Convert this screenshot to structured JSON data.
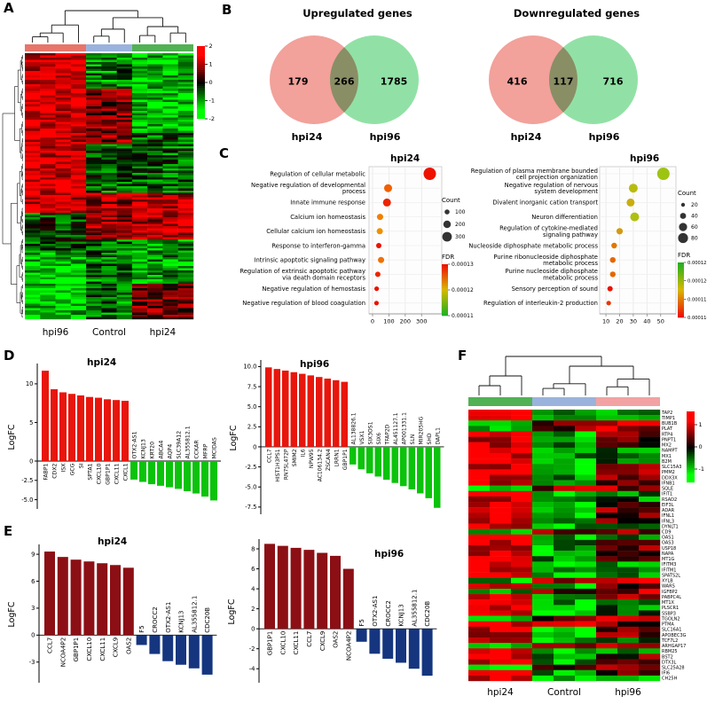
{
  "figure": {
    "panels": {
      "A": "A",
      "B": "B",
      "C": "C",
      "D": "D",
      "E": "E",
      "F": "F"
    }
  },
  "chart_data": [
    {
      "id": "panelA-heatmap",
      "type": "heatmap",
      "panel": "A",
      "description": "Hierarchically clustered heatmap of differentially expressed genes (rows, not legible) across samples (columns); red = up, green = down.",
      "column_groups": [
        {
          "label": "hpi96",
          "color": "#e8756a",
          "columns": 4
        },
        {
          "label": "Control",
          "color": "#9ab3dd",
          "columns": 3
        },
        {
          "label": "hpi24",
          "color": "#51b154",
          "columns": 4
        }
      ],
      "x_labels": [
        "hpi96",
        "Control",
        "hpi24"
      ],
      "color_scale": {
        "high": "#ff0000",
        "mid": "#000000",
        "low": "#00ff00",
        "ticks": [
          "2",
          "1",
          "0",
          "-1",
          "-2"
        ]
      },
      "rows": 120,
      "seed": 7
    },
    {
      "id": "venn-upregulated",
      "type": "venn",
      "panel": "B",
      "title": "Upregulated genes",
      "sets": [
        {
          "label": "hpi24",
          "color": "#f0908a"
        },
        {
          "label": "hpi96",
          "color": "#7edc96"
        }
      ],
      "values": {
        "left_only": "179",
        "overlap": "266",
        "right_only": "1785"
      }
    },
    {
      "id": "venn-downregulated",
      "type": "venn",
      "panel": "B",
      "title": "Downregulated genes",
      "sets": [
        {
          "label": "hpi24",
          "color": "#f0908a"
        },
        {
          "label": "hpi96",
          "color": "#7edc96"
        }
      ],
      "values": {
        "left_only": "416",
        "overlap": "117",
        "right_only": "716"
      }
    },
    {
      "id": "go-hpi24",
      "type": "scatter",
      "panel": "C",
      "title": "hpi24",
      "xlim": [
        0,
        380
      ],
      "x_ticks": [
        "0",
        "100",
        "200",
        "300"
      ],
      "points": [
        {
          "term": [
            "Regulation of cellular metabolic"
          ],
          "count": 350,
          "r": 7,
          "color": "#ee1100"
        },
        {
          "term": [
            "Negative regulation of developmental",
            "process"
          ],
          "count": 95,
          "r": 4.5,
          "color": "#f06000"
        },
        {
          "term": [
            "Innate immune response"
          ],
          "count": 88,
          "r": 4.5,
          "color": "#ee2200"
        },
        {
          "term": [
            "Calcium ion homeostasis"
          ],
          "count": 46,
          "r": 3.5,
          "color": "#f08000"
        },
        {
          "term": [
            "Cellular calcium ion homeostasis"
          ],
          "count": 44,
          "r": 3.5,
          "color": "#f09000"
        },
        {
          "term": [
            "Response to interferon-gamma"
          ],
          "count": 38,
          "r": 3,
          "color": "#ee1100"
        },
        {
          "term": [
            "Intrinsic apoptotic signaling pathway"
          ],
          "count": 52,
          "r": 3.5,
          "color": "#f07000"
        },
        {
          "term": [
            "Regulation of extrinsic apoptotic pathway",
            "via death domain receptors"
          ],
          "count": 32,
          "r": 3,
          "color": "#ee2200"
        },
        {
          "term": [
            "Negative regulation of hemostasis"
          ],
          "count": 25,
          "r": 2.6,
          "color": "#ee1100"
        },
        {
          "term": [
            "Negative regulation of blood coagulation"
          ],
          "count": 24,
          "r": 2.6,
          "color": "#ee1100"
        }
      ],
      "legend": {
        "count_title": "Count",
        "count_items": [
          {
            "label": "100",
            "r": 2.8
          },
          {
            "label": "200",
            "r": 4.2
          },
          {
            "label": "300",
            "r": 5.4
          }
        ],
        "fdr_title": "FDR",
        "fdr_ticks": [
          "0.00013",
          "0.00012",
          "0.00011"
        ],
        "fdr_colors": [
          "#ee1100",
          "#d8b800",
          "#20b020"
        ]
      }
    },
    {
      "id": "go-hpi96",
      "type": "scatter",
      "panel": "C",
      "title": "hpi96",
      "xlim": [
        8,
        56
      ],
      "x_ticks": [
        "10",
        "20",
        "30",
        "40",
        "50"
      ],
      "points": [
        {
          "term": [
            "Regulation of plasma membrane bounded",
            "cell projection organization"
          ],
          "count": 52,
          "r": 7,
          "color": "#9ec413"
        },
        {
          "term": [
            "Negative regulation of nervous",
            "system development"
          ],
          "count": 30,
          "r": 5,
          "color": "#b8bc10"
        },
        {
          "term": [
            "Divalent inorganic cation transport"
          ],
          "count": 28,
          "r": 4.5,
          "color": "#c8ae10"
        },
        {
          "term": [
            "Neuron differentiation"
          ],
          "count": 31,
          "r": 5,
          "color": "#aec010"
        },
        {
          "term": [
            "Regulation of cytokine-mediated",
            "signaling pathway"
          ],
          "count": 20,
          "r": 3.6,
          "color": "#d49a10"
        },
        {
          "term": [
            "Nucleoside diphosphate metabolic process"
          ],
          "count": 16,
          "r": 3.2,
          "color": "#e07800"
        },
        {
          "term": [
            "Purine ribonucleoside diphosphate",
            "metabolic process"
          ],
          "count": 15,
          "r": 3.2,
          "color": "#e66600"
        },
        {
          "term": [
            "Purine nucleoside diphosphate",
            "metabolic process"
          ],
          "count": 15,
          "r": 3.2,
          "color": "#e66600"
        },
        {
          "term": [
            "Sensory perception of sound"
          ],
          "count": 13,
          "r": 3,
          "color": "#ee1100"
        },
        {
          "term": [
            "Regulation of interleukin-2 production"
          ],
          "count": 12,
          "r": 2.6,
          "color": "#ec3300"
        }
      ],
      "legend": {
        "count_title": "Count",
        "count_items": [
          {
            "label": "20",
            "r": 2.2
          },
          {
            "label": "40",
            "r": 3.4
          },
          {
            "label": "60",
            "r": 4.6
          },
          {
            "label": "80",
            "r": 5.6
          }
        ],
        "fdr_title": "FDR",
        "fdr_ticks": [
          "0.000125",
          "0.000120",
          "0.000115",
          "0.000110"
        ],
        "fdr_colors": [
          "#20b020",
          "#d8b800",
          "#ee1100"
        ]
      }
    },
    {
      "id": "bar-D-hpi24",
      "type": "bar",
      "panel": "D",
      "title": "hpi24",
      "ylabel": "LogFC",
      "y_ticks": [
        "10",
        "5",
        "0",
        "-2.5",
        "-5.0"
      ],
      "up_color": "#e8160c",
      "down_color": "#0bc30b",
      "bars": [
        {
          "gene": "FABP1",
          "logfc": 11.7
        },
        {
          "gene": "CDX2",
          "logfc": 9.3
        },
        {
          "gene": "ISX",
          "logfc": 8.9
        },
        {
          "gene": "GCG",
          "logfc": 8.7
        },
        {
          "gene": "SI",
          "logfc": 8.5
        },
        {
          "gene": "SPTA1",
          "logfc": 8.3
        },
        {
          "gene": "CXCL10",
          "logfc": 8.2
        },
        {
          "gene": "GBP1P1",
          "logfc": 8.0
        },
        {
          "gene": "CXCL11",
          "logfc": 7.9
        },
        {
          "gene": "CXCL1",
          "logfc": 7.8
        },
        {
          "gene": "OTX2-AS1",
          "logfc": -2.4
        },
        {
          "gene": "KCNJ13",
          "logfc": -2.7
        },
        {
          "gene": "KRT20",
          "logfc": -3.0
        },
        {
          "gene": "ABCA4",
          "logfc": -3.2
        },
        {
          "gene": "AQP4",
          "logfc": -3.4
        },
        {
          "gene": "SLC39A12",
          "logfc": -3.6
        },
        {
          "gene": "AL355812.1",
          "logfc": -3.9
        },
        {
          "gene": "CCKAR",
          "logfc": -4.2
        },
        {
          "gene": "MFRP",
          "logfc": -4.6
        },
        {
          "gene": "MCIDAS",
          "logfc": -5.1
        }
      ]
    },
    {
      "id": "bar-D-hpi96",
      "type": "bar",
      "panel": "D",
      "title": "hpi96",
      "ylabel": "LogFC",
      "y_ticks": [
        "10.0",
        "7.5",
        "5.0",
        "2.5",
        "0",
        "-2.5",
        "-5.0",
        "-7.5"
      ],
      "up_color": "#e8160c",
      "down_color": "#0bc30b",
      "bars": [
        {
          "gene": "CCL7",
          "logfc": 9.9
        },
        {
          "gene": "HIST1H3PS1",
          "logfc": 9.7
        },
        {
          "gene": "RN7SL472P",
          "logfc": 9.5
        },
        {
          "gene": "SMIM2",
          "logfc": 9.3
        },
        {
          "gene": "IL6",
          "logfc": 9.1
        },
        {
          "gene": "NPW95",
          "logfc": 8.9
        },
        {
          "gene": "AC106134.2",
          "logfc": 8.7
        },
        {
          "gene": "ZSCAN4",
          "logfc": 8.5
        },
        {
          "gene": "LRRN1",
          "logfc": 8.3
        },
        {
          "gene": "GBP1P1",
          "logfc": 8.1
        },
        {
          "gene": "AL138826.1",
          "logfc": -2.2
        },
        {
          "gene": "VSX1",
          "logfc": -2.8
        },
        {
          "gene": "SIX3OS1",
          "logfc": -3.3
        },
        {
          "gene": "SIX6",
          "logfc": -3.7
        },
        {
          "gene": "TFAP2D",
          "logfc": -4.1
        },
        {
          "gene": "AL451127.1",
          "logfc": -4.5
        },
        {
          "gene": "AP001331.1",
          "logfc": -4.9
        },
        {
          "gene": "SLN",
          "logfc": -5.3
        },
        {
          "gene": "MIR205HG",
          "logfc": -5.8
        },
        {
          "gene": "SHD",
          "logfc": -6.4
        },
        {
          "gene": "DAPL1",
          "logfc": -7.6
        }
      ]
    },
    {
      "id": "bar-E-hpi24",
      "type": "bar",
      "panel": "E",
      "title": "hpi24",
      "ylabel": "LogFC",
      "y_ticks": [
        "9",
        "6",
        "3",
        "0",
        "-3"
      ],
      "up_color": "#8b0f14",
      "down_color": "#15357f",
      "bars": [
        {
          "gene": "CCL7",
          "logfc": 9.3
        },
        {
          "gene": "NCOA4P2",
          "logfc": 8.7
        },
        {
          "gene": "GBP1P1",
          "logfc": 8.4
        },
        {
          "gene": "CXCL10",
          "logfc": 8.2
        },
        {
          "gene": "CXCL11",
          "logfc": 8.0
        },
        {
          "gene": "CXCL9",
          "logfc": 7.8
        },
        {
          "gene": "OAS2",
          "logfc": 7.5
        },
        {
          "gene": "F5",
          "logfc": -1.1
        },
        {
          "gene": "CROCC2",
          "logfc": -2.1
        },
        {
          "gene": "OTX2-AS1",
          "logfc": -2.9
        },
        {
          "gene": "KCNJ13",
          "logfc": -3.3
        },
        {
          "gene": "AL355812.1",
          "logfc": -3.7
        },
        {
          "gene": "CDC20B",
          "logfc": -4.4
        }
      ]
    },
    {
      "id": "bar-E-hpi96",
      "type": "bar",
      "panel": "E",
      "title": "hpi96",
      "ylabel": "LogFC",
      "y_ticks": [
        "8",
        "6",
        "4",
        "2",
        "0",
        "-2",
        "-4"
      ],
      "up_color": "#8b0f14",
      "down_color": "#15357f",
      "bars": [
        {
          "gene": "GBP1P1",
          "logfc": 8.5
        },
        {
          "gene": "CXCL10",
          "logfc": 8.3
        },
        {
          "gene": "CXCL11",
          "logfc": 8.1
        },
        {
          "gene": "CCL7",
          "logfc": 7.9
        },
        {
          "gene": "CXCL9",
          "logfc": 7.6
        },
        {
          "gene": "OAS2",
          "logfc": 7.3
        },
        {
          "gene": "NCOA4P2",
          "logfc": 6.0
        },
        {
          "gene": "F5",
          "logfc": -1.3
        },
        {
          "gene": "OTX2-AS1",
          "logfc": -2.5
        },
        {
          "gene": "CROCC2",
          "logfc": -3.0
        },
        {
          "gene": "KCNJ13",
          "logfc": -3.4
        },
        {
          "gene": "AL355812.1",
          "logfc": -4.0
        },
        {
          "gene": "CDC20B",
          "logfc": -4.7
        }
      ]
    },
    {
      "id": "panelF-heatmap",
      "type": "heatmap",
      "panel": "F",
      "description": "Clustered heatmap of selected immune / interferon-related genes across sample groups; red = up, green = down.",
      "column_groups": [
        {
          "label": "hpi24",
          "color": "#51b154",
          "columns": 3
        },
        {
          "label": "Control",
          "color": "#9ab3dd",
          "columns": 3
        },
        {
          "label": "hpi96",
          "color": "#f2a2a2",
          "columns": 3
        }
      ],
      "x_labels": [
        "hpi24",
        "Control",
        "hpi96"
      ],
      "genes": [
        "TAP2",
        "TIMP1",
        "BUB1B",
        "PLAT",
        "RTP4",
        "PNPT1",
        "MX2",
        "NAMPT",
        "MX1",
        "B2M",
        "SLC15A3",
        "PMM2",
        "DDX3X",
        "IFNB1",
        "SQLE",
        "IFIT1",
        "RSAD2",
        "EIF3L",
        "ADAR",
        "IFNL1",
        "IFNL3",
        "DYNLT1",
        "CD9",
        "OAS1",
        "OAS3",
        "USP18",
        "NAPA",
        "MT1G",
        "IFITM3",
        "IFITM1",
        "SPATS2L",
        "XYLB",
        "WARS",
        "IGFBP2",
        "PABPC4L",
        "MT1X",
        "PLSCR1",
        "SSBP3",
        "TGOLN2",
        "PTMA",
        "SLC16A1",
        "APOBEC3G",
        "TCF7L2",
        "ARHGAP17",
        "RBM25",
        "BST2",
        "DTX3L",
        "SLC25A28",
        "IFI6",
        "CH25H"
      ],
      "color_scale": {
        "high": "#ff0000",
        "mid": "#000000",
        "low": "#00ff00",
        "ticks": [
          "1",
          "0",
          "-1"
        ]
      },
      "seed": 11
    }
  ]
}
